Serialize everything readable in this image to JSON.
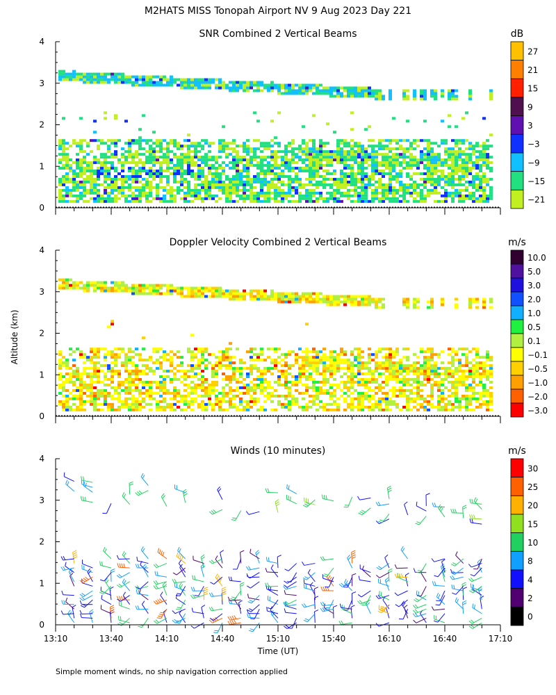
{
  "figure": {
    "title": "M2HATS MISS Tonopah Airport NV   9 Aug 2023 Day 221",
    "shared_ylabel": "Altitude (km)",
    "xlabel": "Time (UT)",
    "footnote": "Simple moment winds, no ship navigation correction applied"
  },
  "chart_data": [
    {
      "type": "heatmap",
      "title": "SNR Combined 2 Vertical Beams",
      "ylabel": "Altitude (km)",
      "ylim": [
        0,
        4
      ],
      "yticks": [
        "0",
        "1",
        "2",
        "3",
        "4"
      ],
      "x_range_hours": [
        13.1667,
        17.1667
      ],
      "colorbar": {
        "unit": "dB",
        "labels": [
          "27",
          "21",
          "15",
          "9",
          "3",
          "−3",
          "−9",
          "−15",
          "−21"
        ],
        "colors": [
          "#ffc000",
          "#ff8000",
          "#ff2000",
          "#501050",
          "#6010b0",
          "#1030ff",
          "#10c0ff",
          "#20e080",
          "#c0f020"
        ],
        "levels": [
          {
            "label": "27",
            "color": "#ffc000"
          },
          {
            "label": "21",
            "color": "#ff8000"
          },
          {
            "label": "15",
            "color": "#ff2000"
          },
          {
            "label": "9",
            "color": "#501050"
          },
          {
            "label": "3",
            "color": "#6010b0"
          },
          {
            "label": "−3",
            "color": "#1030ff"
          },
          {
            "label": "−9",
            "color": "#10c0ff"
          },
          {
            "label": "−15",
            "color": "#20e080"
          },
          {
            "label": "−21",
            "color": "#c0f020"
          }
        ]
      },
      "features": [
        {
          "name": "elevated layer",
          "altitude_km_start": 3.15,
          "altitude_km_end": 2.75,
          "typical_dB": -15
        },
        {
          "name": "boundary layer echoes",
          "altitude_km": [
            0.1,
            1.6
          ],
          "typical_dB": -15,
          "peak_dB": -3
        }
      ]
    },
    {
      "type": "heatmap",
      "title": "Doppler Velocity Combined 2 Vertical Beams",
      "ylabel": "Altitude (km)",
      "ylim": [
        0,
        4
      ],
      "yticks": [
        "0",
        "1",
        "2",
        "3",
        "4"
      ],
      "x_range_hours": [
        13.1667,
        17.1667
      ],
      "colorbar": {
        "unit": "m/s",
        "labels": [
          "10.0",
          "5.0",
          "3.0",
          "2.0",
          "1.0",
          "0.5",
          "0.1",
          "−0.1",
          "−0.5",
          "−1.0",
          "−2.0",
          "−3.0"
        ],
        "colors": [
          "#300030",
          "#5010a0",
          "#2010e0",
          "#1050ff",
          "#10b0ff",
          "#20f040",
          "#b0f040",
          "#ffff00",
          "#ffd000",
          "#ffa000",
          "#ff6000",
          "#ff0000"
        ],
        "levels": [
          {
            "label": "10.0",
            "color": "#300030"
          },
          {
            "label": "5.0",
            "color": "#5010a0"
          },
          {
            "label": "3.0",
            "color": "#2010e0"
          },
          {
            "label": "2.0",
            "color": "#1050ff"
          },
          {
            "label": "1.0",
            "color": "#10b0ff"
          },
          {
            "label": "0.5",
            "color": "#20f040"
          },
          {
            "label": "0.1",
            "color": "#b0f040"
          },
          {
            "label": "−0.1",
            "color": "#ffff00"
          },
          {
            "label": "−0.5",
            "color": "#ffd000"
          },
          {
            "label": "−1.0",
            "color": "#ffa000"
          },
          {
            "label": "−2.0",
            "color": "#ff6000"
          },
          {
            "label": "−3.0",
            "color": "#ff0000"
          }
        ]
      }
    },
    {
      "type": "scatter",
      "title": "Winds (10 minutes)",
      "ylabel": "Altitude (km)",
      "xlabel": "Time (UT)",
      "ylim": [
        0,
        4
      ],
      "yticks": [
        "0",
        "1",
        "2",
        "3",
        "4"
      ],
      "x_range_hours": [
        13.1667,
        17.1667
      ],
      "xticks": [
        {
          "label": "13:10",
          "hours": 13.1667
        },
        {
          "label": "13:40",
          "hours": 13.6667
        },
        {
          "label": "14:10",
          "hours": 14.1667
        },
        {
          "label": "14:40",
          "hours": 14.6667
        },
        {
          "label": "15:10",
          "hours": 15.1667
        },
        {
          "label": "15:40",
          "hours": 15.6667
        },
        {
          "label": "16:10",
          "hours": 16.1667
        },
        {
          "label": "16:40",
          "hours": 16.6667
        },
        {
          "label": "17:10",
          "hours": 17.1667
        }
      ],
      "colorbar": {
        "unit": "m/s",
        "labels": [
          "30",
          "25",
          "20",
          "15",
          "10",
          "8",
          "4",
          "2",
          "0"
        ],
        "colors": [
          "#ff0000",
          "#ff6000",
          "#ffb000",
          "#90e020",
          "#20d060",
          "#10a0ff",
          "#1010ff",
          "#500070",
          "#000000"
        ],
        "levels": [
          {
            "label": "30",
            "color": "#ff0000"
          },
          {
            "label": "25",
            "color": "#ff6000"
          },
          {
            "label": "20",
            "color": "#ffb000"
          },
          {
            "label": "15",
            "color": "#90e020"
          },
          {
            "label": "10",
            "color": "#20d060"
          },
          {
            "label": "8",
            "color": "#10a0ff"
          },
          {
            "label": "4",
            "color": "#1010ff"
          },
          {
            "label": "2",
            "color": "#500070"
          },
          {
            "label": "0",
            "color": "#000000"
          }
        ]
      },
      "barb_time_step_minutes": 10
    }
  ]
}
